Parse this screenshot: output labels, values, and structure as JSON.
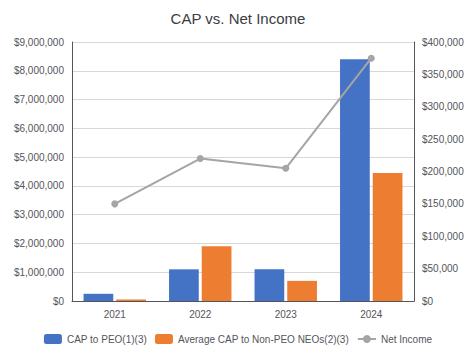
{
  "chart_data": {
    "type": "bar",
    "title": "CAP vs. Net Income",
    "categories": [
      "2021",
      "2022",
      "2023",
      "2024"
    ],
    "series": [
      {
        "name": "CAP to PEO(1)(3)",
        "type": "bar",
        "color": "#4472C4",
        "values": [
          250000,
          1100000,
          1100000,
          8400000
        ]
      },
      {
        "name": "Average CAP to Non-PEO NEOs(2)(3)",
        "type": "bar",
        "color": "#ED7D31",
        "values": [
          50000,
          1900000,
          700000,
          4450000
        ]
      },
      {
        "name": "Net Income",
        "type": "line",
        "axis": "y2",
        "color": "#A5A5A5",
        "marker": "circle",
        "values": [
          150000,
          220000,
          205000,
          375000
        ]
      }
    ],
    "ylim": [
      0,
      9000000
    ],
    "yticks": [
      {
        "value": 0,
        "label": "$0"
      },
      {
        "value": 1000000,
        "label": "$1,000,000"
      },
      {
        "value": 2000000,
        "label": "$2,000,000"
      },
      {
        "value": 3000000,
        "label": "$3,000,000"
      },
      {
        "value": 4000000,
        "label": "$4,000,000"
      },
      {
        "value": 5000000,
        "label": "$5,000,000"
      },
      {
        "value": 6000000,
        "label": "$6,000,000"
      },
      {
        "value": 7000000,
        "label": "$7,000,000"
      },
      {
        "value": 8000000,
        "label": "$8,000,000"
      },
      {
        "value": 9000000,
        "label": "$9,000,000"
      }
    ],
    "y2lim": [
      0,
      400000
    ],
    "y2ticks": [
      {
        "value": 0,
        "label": "$0"
      },
      {
        "value": 50000,
        "label": "$50,000"
      },
      {
        "value": 100000,
        "label": "$100,000"
      },
      {
        "value": 150000,
        "label": "$150,000"
      },
      {
        "value": 200000,
        "label": "$200,000"
      },
      {
        "value": 250000,
        "label": "$250,000"
      },
      {
        "value": 300000,
        "label": "$300,000"
      },
      {
        "value": 350000,
        "label": "$350,000"
      },
      {
        "value": 400000,
        "label": "$400,000"
      }
    ],
    "grid": true,
    "legend": "bottom"
  }
}
